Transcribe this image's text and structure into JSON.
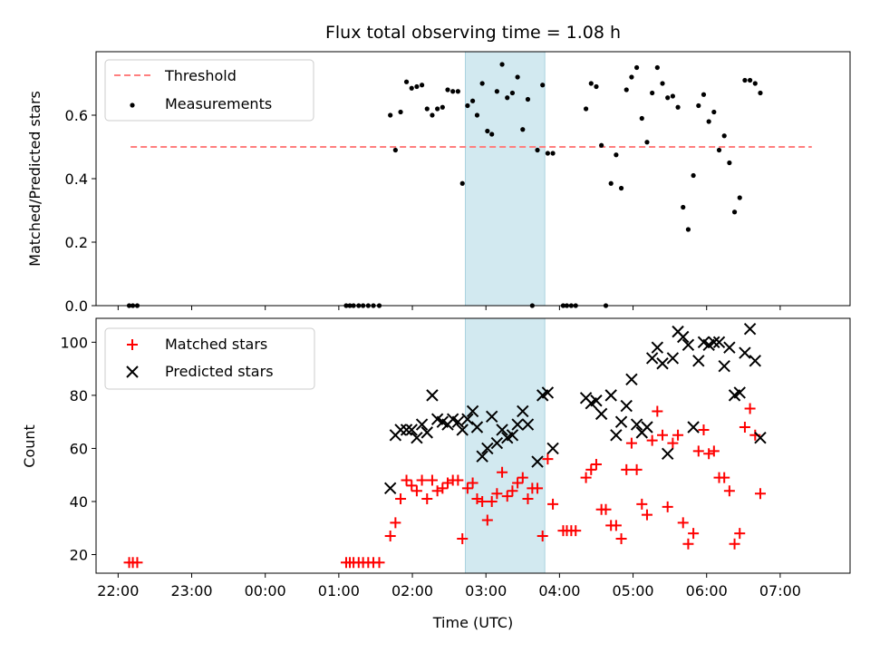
{
  "chart_data": {
    "type": "scatter",
    "title": "Flux total observing time = 1.08 h",
    "xlabel": "Time (UTC)",
    "x_tick_labels": [
      "22:00",
      "23:00",
      "00:00",
      "01:00",
      "02:00",
      "03:00",
      "04:00",
      "05:00",
      "06:00",
      "07:00"
    ],
    "x_tick_hours": [
      22,
      23,
      24,
      25,
      26,
      27,
      28,
      29,
      30,
      31
    ],
    "xlim": [
      21.7,
      31.95
    ],
    "highlight_span": [
      26.72,
      27.8
    ],
    "highlight_color": "#d2e9f0",
    "panels": [
      {
        "ylabel": "Matched/Predicted stars",
        "ylim": [
          0,
          0.8
        ],
        "y_ticks": [
          "0.0",
          "0.2",
          "0.4",
          "0.6"
        ],
        "y_tick_values": [
          0,
          0.2,
          0.4,
          0.6
        ],
        "threshold": {
          "name": "Threshold",
          "y": 0.5,
          "x_range": [
            22.17,
            31.43
          ],
          "color": "#ff7f7f"
        },
        "series": [
          {
            "name": "Measurements",
            "marker": "dot",
            "color": "#000000",
            "points": [
              [
                22.15,
                0.0
              ],
              [
                22.2,
                0.0
              ],
              [
                22.26,
                0.0
              ],
              [
                25.1,
                0.0
              ],
              [
                25.15,
                0.0
              ],
              [
                25.2,
                0.0
              ],
              [
                25.27,
                0.0
              ],
              [
                25.33,
                0.0
              ],
              [
                25.4,
                0.0
              ],
              [
                25.47,
                0.0
              ],
              [
                25.55,
                0.0
              ],
              [
                25.7,
                0.6
              ],
              [
                25.77,
                0.49
              ],
              [
                25.84,
                0.61
              ],
              [
                25.92,
                0.705
              ],
              [
                25.99,
                0.685
              ],
              [
                26.06,
                0.69
              ],
              [
                26.13,
                0.695
              ],
              [
                26.2,
                0.62
              ],
              [
                26.27,
                0.6
              ],
              [
                26.34,
                0.62
              ],
              [
                26.41,
                0.625
              ],
              [
                26.48,
                0.68
              ],
              [
                26.55,
                0.675
              ],
              [
                26.62,
                0.675
              ],
              [
                26.68,
                0.385
              ],
              [
                26.75,
                0.63
              ],
              [
                26.82,
                0.645
              ],
              [
                26.88,
                0.6
              ],
              [
                26.95,
                0.7
              ],
              [
                27.02,
                0.55
              ],
              [
                27.08,
                0.54
              ],
              [
                27.15,
                0.675
              ],
              [
                27.22,
                0.76
              ],
              [
                27.29,
                0.655
              ],
              [
                27.36,
                0.67
              ],
              [
                27.43,
                0.72
              ],
              [
                27.5,
                0.555
              ],
              [
                27.57,
                0.65
              ],
              [
                27.63,
                0.0
              ],
              [
                27.7,
                0.49
              ],
              [
                27.77,
                0.695
              ],
              [
                27.84,
                0.48
              ],
              [
                27.91,
                0.48
              ],
              [
                28.05,
                0.0
              ],
              [
                28.1,
                0.0
              ],
              [
                28.16,
                0.0
              ],
              [
                28.22,
                0.0
              ],
              [
                28.36,
                0.62
              ],
              [
                28.43,
                0.7
              ],
              [
                28.5,
                0.69
              ],
              [
                28.57,
                0.505
              ],
              [
                28.63,
                0.0
              ],
              [
                28.7,
                0.385
              ],
              [
                28.77,
                0.475
              ],
              [
                28.84,
                0.37
              ],
              [
                28.91,
                0.68
              ],
              [
                28.98,
                0.72
              ],
              [
                29.05,
                0.75
              ],
              [
                29.12,
                0.59
              ],
              [
                29.19,
                0.515
              ],
              [
                29.26,
                0.67
              ],
              [
                29.33,
                0.75
              ],
              [
                29.4,
                0.7
              ],
              [
                29.47,
                0.655
              ],
              [
                29.54,
                0.66
              ],
              [
                29.61,
                0.625
              ],
              [
                29.68,
                0.31
              ],
              [
                29.75,
                0.24
              ],
              [
                29.82,
                0.41
              ],
              [
                29.89,
                0.63
              ],
              [
                29.96,
                0.665
              ],
              [
                30.03,
                0.58
              ],
              [
                30.1,
                0.61
              ],
              [
                30.17,
                0.49
              ],
              [
                30.24,
                0.535
              ],
              [
                30.31,
                0.45
              ],
              [
                30.38,
                0.295
              ],
              [
                30.45,
                0.34
              ],
              [
                30.52,
                0.71
              ],
              [
                30.59,
                0.71
              ],
              [
                30.66,
                0.7
              ],
              [
                30.73,
                0.67
              ]
            ]
          }
        ]
      },
      {
        "ylabel": "Count",
        "ylim": [
          13,
          109
        ],
        "y_ticks": [
          "20",
          "40",
          "60",
          "80",
          "100"
        ],
        "y_tick_values": [
          20,
          40,
          60,
          80,
          100
        ],
        "series": [
          {
            "name": "Matched stars",
            "marker": "plus",
            "color": "#ff0000",
            "points": [
              [
                22.15,
                17
              ],
              [
                22.2,
                17
              ],
              [
                22.26,
                17
              ],
              [
                25.1,
                17
              ],
              [
                25.15,
                17
              ],
              [
                25.2,
                17
              ],
              [
                25.27,
                17
              ],
              [
                25.33,
                17
              ],
              [
                25.4,
                17
              ],
              [
                25.47,
                17
              ],
              [
                25.55,
                17
              ],
              [
                25.7,
                27
              ],
              [
                25.77,
                32
              ],
              [
                25.84,
                41
              ],
              [
                25.92,
                48
              ],
              [
                25.99,
                46
              ],
              [
                26.06,
                44
              ],
              [
                26.13,
                48
              ],
              [
                26.2,
                41
              ],
              [
                26.27,
                48
              ],
              [
                26.34,
                44
              ],
              [
                26.41,
                45
              ],
              [
                26.48,
                47
              ],
              [
                26.55,
                48
              ],
              [
                26.62,
                48
              ],
              [
                26.68,
                26
              ],
              [
                26.75,
                45
              ],
              [
                26.82,
                47
              ],
              [
                26.88,
                41
              ],
              [
                26.95,
                40
              ],
              [
                27.02,
                33
              ],
              [
                27.08,
                40
              ],
              [
                27.15,
                43
              ],
              [
                27.22,
                51
              ],
              [
                27.29,
                42
              ],
              [
                27.36,
                44
              ],
              [
                27.43,
                47
              ],
              [
                27.5,
                49
              ],
              [
                27.57,
                41
              ],
              [
                27.63,
                45
              ],
              [
                27.7,
                45
              ],
              [
                27.77,
                27
              ],
              [
                27.84,
                56
              ],
              [
                27.91,
                39
              ],
              [
                28.05,
                29
              ],
              [
                28.1,
                29
              ],
              [
                28.16,
                29
              ],
              [
                28.22,
                29
              ],
              [
                28.36,
                49
              ],
              [
                28.43,
                52
              ],
              [
                28.5,
                54
              ],
              [
                28.57,
                37
              ],
              [
                28.63,
                37
              ],
              [
                28.7,
                31
              ],
              [
                28.77,
                31
              ],
              [
                28.84,
                26
              ],
              [
                28.91,
                52
              ],
              [
                28.98,
                62
              ],
              [
                29.05,
                52
              ],
              [
                29.12,
                39
              ],
              [
                29.19,
                35
              ],
              [
                29.26,
                63
              ],
              [
                29.33,
                74
              ],
              [
                29.4,
                65
              ],
              [
                29.47,
                38
              ],
              [
                29.54,
                62
              ],
              [
                29.61,
                65
              ],
              [
                29.68,
                32
              ],
              [
                29.75,
                24
              ],
              [
                29.82,
                28
              ],
              [
                29.89,
                59
              ],
              [
                29.96,
                67
              ],
              [
                30.03,
                58
              ],
              [
                30.1,
                59
              ],
              [
                30.17,
                49
              ],
              [
                30.24,
                49
              ],
              [
                30.31,
                44
              ],
              [
                30.38,
                24
              ],
              [
                30.45,
                28
              ],
              [
                30.52,
                68
              ],
              [
                30.59,
                75
              ],
              [
                30.66,
                65
              ],
              [
                30.73,
                43
              ]
            ]
          },
          {
            "name": "Predicted stars",
            "marker": "x",
            "color": "#000000",
            "points": [
              [
                25.7,
                45
              ],
              [
                25.77,
                65
              ],
              [
                25.84,
                67
              ],
              [
                25.92,
                67
              ],
              [
                25.99,
                67
              ],
              [
                26.06,
                64
              ],
              [
                26.13,
                69
              ],
              [
                26.2,
                66
              ],
              [
                26.27,
                80
              ],
              [
                26.34,
                71
              ],
              [
                26.41,
                70
              ],
              [
                26.48,
                69
              ],
              [
                26.55,
                71
              ],
              [
                26.62,
                70
              ],
              [
                26.68,
                67
              ],
              [
                26.75,
                71
              ],
              [
                26.82,
                74
              ],
              [
                26.88,
                68
              ],
              [
                26.95,
                57
              ],
              [
                27.02,
                60
              ],
              [
                27.08,
                72
              ],
              [
                27.15,
                62
              ],
              [
                27.22,
                67
              ],
              [
                27.29,
                64
              ],
              [
                27.36,
                65
              ],
              [
                27.43,
                69
              ],
              [
                27.5,
                74
              ],
              [
                27.57,
                69
              ],
              [
                27.7,
                55
              ],
              [
                27.77,
                80
              ],
              [
                27.84,
                81
              ],
              [
                27.91,
                60
              ],
              [
                28.36,
                79
              ],
              [
                28.43,
                77
              ],
              [
                28.5,
                78
              ],
              [
                28.57,
                73
              ],
              [
                28.7,
                80
              ],
              [
                28.77,
                65
              ],
              [
                28.84,
                70
              ],
              [
                28.91,
                76
              ],
              [
                28.98,
                86
              ],
              [
                29.05,
                69
              ],
              [
                29.12,
                66
              ],
              [
                29.19,
                68
              ],
              [
                29.26,
                94
              ],
              [
                29.33,
                98
              ],
              [
                29.4,
                92
              ],
              [
                29.47,
                58
              ],
              [
                29.54,
                94
              ],
              [
                29.61,
                104
              ],
              [
                29.68,
                102
              ],
              [
                29.75,
                99
              ],
              [
                29.82,
                68
              ],
              [
                29.89,
                93
              ],
              [
                29.96,
                100
              ],
              [
                30.03,
                99
              ],
              [
                30.1,
                100
              ],
              [
                30.17,
                100
              ],
              [
                30.24,
                91
              ],
              [
                30.31,
                98
              ],
              [
                30.38,
                80
              ],
              [
                30.45,
                81
              ],
              [
                30.52,
                96
              ],
              [
                30.59,
                105
              ],
              [
                30.66,
                93
              ],
              [
                30.73,
                64
              ]
            ]
          }
        ]
      }
    ]
  }
}
